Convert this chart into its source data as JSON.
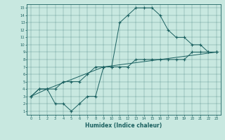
{
  "xlabel": "Humidex (Indice chaleur)",
  "ylabel": "",
  "bg_color": "#c8e8e0",
  "line_color": "#1a6060",
  "xlim": [
    -0.5,
    23.5
  ],
  "ylim": [
    0.5,
    15.5
  ],
  "xticks": [
    0,
    1,
    2,
    3,
    4,
    5,
    6,
    7,
    8,
    9,
    10,
    11,
    12,
    13,
    14,
    15,
    16,
    17,
    18,
    19,
    20,
    21,
    22,
    23
  ],
  "yticks": [
    1,
    2,
    3,
    4,
    5,
    6,
    7,
    8,
    9,
    10,
    11,
    12,
    13,
    14,
    15
  ],
  "line1": {
    "x": [
      0,
      1,
      2,
      3,
      4,
      5,
      6,
      7,
      8,
      9,
      10,
      11,
      12,
      13,
      14,
      15,
      16,
      17,
      18,
      19,
      20,
      21,
      22,
      23
    ],
    "y": [
      3,
      4,
      4,
      2,
      2,
      1,
      2,
      3,
      3,
      7,
      7,
      13,
      14,
      15,
      15,
      15,
      14,
      12,
      11,
      11,
      10,
      10,
      9,
      9
    ]
  },
  "line2": {
    "x": [
      0,
      1,
      2,
      3,
      4,
      5,
      6,
      7,
      8,
      9,
      10,
      11,
      12,
      13,
      14,
      15,
      16,
      17,
      18,
      19,
      20,
      21,
      22,
      23
    ],
    "y": [
      3,
      4,
      4,
      4,
      5,
      5,
      5,
      6,
      7,
      7,
      7,
      7,
      7,
      8,
      8,
      8,
      8,
      8,
      8,
      8,
      9,
      9,
      9,
      9
    ]
  },
  "line3": {
    "x": [
      0,
      2,
      9,
      23
    ],
    "y": [
      3,
      4,
      7,
      9
    ]
  }
}
